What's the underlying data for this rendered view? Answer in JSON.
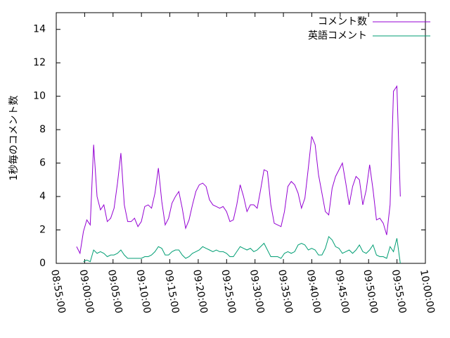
{
  "chart_data": {
    "type": "line",
    "ylabel": "1秒毎のコメント数",
    "x": [
      "08:58:35",
      "08:59:11",
      "08:59:47",
      "09:00:23",
      "09:00:59",
      "09:01:35",
      "09:02:11",
      "09:02:47",
      "09:03:23",
      "09:03:59",
      "09:04:35",
      "09:05:11",
      "09:05:47",
      "09:06:23",
      "09:06:59",
      "09:07:35",
      "09:08:11",
      "09:08:47",
      "09:09:23",
      "09:09:59",
      "09:10:35",
      "09:11:11",
      "09:11:47",
      "09:12:23",
      "09:12:59",
      "09:13:35",
      "09:14:11",
      "09:14:47",
      "09:15:23",
      "09:15:59",
      "09:16:35",
      "09:17:11",
      "09:17:47",
      "09:18:23",
      "09:18:59",
      "09:19:35",
      "09:20:11",
      "09:20:47",
      "09:21:23",
      "09:21:59",
      "09:22:35",
      "09:23:11",
      "09:23:47",
      "09:24:23",
      "09:24:59",
      "09:25:35",
      "09:26:11",
      "09:26:47",
      "09:27:23",
      "09:27:59",
      "09:28:35",
      "09:29:11",
      "09:29:47",
      "09:30:23",
      "09:30:59",
      "09:31:35",
      "09:32:11",
      "09:32:47",
      "09:33:23",
      "09:33:59",
      "09:34:35",
      "09:35:11",
      "09:35:47",
      "09:36:23",
      "09:36:59",
      "09:37:35",
      "09:38:11",
      "09:38:47",
      "09:39:23",
      "09:39:59",
      "09:40:35",
      "09:41:11",
      "09:41:47",
      "09:42:23",
      "09:42:59",
      "09:43:35",
      "09:44:11",
      "09:44:47",
      "09:45:23",
      "09:45:59",
      "09:46:35",
      "09:47:11",
      "09:47:47",
      "09:48:23",
      "09:48:59",
      "09:49:35",
      "09:50:11",
      "09:50:47",
      "09:51:23",
      "09:51:59",
      "09:52:35",
      "09:53:11",
      "09:53:47",
      "09:54:23",
      "09:54:59",
      "09:55:35"
    ],
    "series": [
      {
        "name": "コメント数",
        "color": "#9400d3",
        "values": [
          1.0,
          0.6,
          1.9,
          2.6,
          2.3,
          7.1,
          4.0,
          3.2,
          3.5,
          2.5,
          2.7,
          3.3,
          4.8,
          6.6,
          3.5,
          2.5,
          2.5,
          2.7,
          2.2,
          2.5,
          3.4,
          3.5,
          3.3,
          4.2,
          5.7,
          3.7,
          2.3,
          2.7,
          3.6,
          4.0,
          4.3,
          3.3,
          2.1,
          2.6,
          3.5,
          4.3,
          4.7,
          4.8,
          4.6,
          3.8,
          3.5,
          3.4,
          3.3,
          3.4,
          3.1,
          2.5,
          2.6,
          3.5,
          4.7,
          4.0,
          3.1,
          3.5,
          3.5,
          3.3,
          4.4,
          5.6,
          5.5,
          3.5,
          2.4,
          2.3,
          2.2,
          3.1,
          4.6,
          4.9,
          4.7,
          4.2,
          3.3,
          3.9,
          5.7,
          7.6,
          7.1,
          5.3,
          4.2,
          3.1,
          2.9,
          4.5,
          5.2,
          5.6,
          6.0,
          4.8,
          3.5,
          4.6,
          5.2,
          5.0,
          3.5,
          4.4,
          5.9,
          4.4,
          2.6,
          2.7,
          2.4,
          1.7,
          3.5,
          10.3,
          10.6,
          4.0
        ]
      },
      {
        "name": "英語コメント",
        "color": "#009e73",
        "values": [
          null,
          null,
          0.1,
          0.2,
          0.1,
          0.8,
          0.6,
          0.7,
          0.6,
          0.4,
          0.5,
          0.5,
          0.6,
          0.8,
          0.5,
          0.3,
          0.3,
          0.3,
          0.3,
          0.3,
          0.4,
          0.4,
          0.5,
          0.7,
          1.0,
          0.9,
          0.5,
          0.5,
          0.7,
          0.8,
          0.8,
          0.5,
          0.3,
          0.4,
          0.6,
          0.7,
          0.8,
          1.0,
          0.9,
          0.8,
          0.7,
          0.8,
          0.7,
          0.7,
          0.6,
          0.4,
          0.4,
          0.7,
          1.0,
          0.9,
          0.8,
          0.9,
          0.7,
          0.8,
          1.0,
          1.2,
          0.8,
          0.4,
          0.4,
          0.4,
          0.3,
          0.6,
          0.7,
          0.6,
          0.7,
          1.1,
          1.2,
          1.1,
          0.8,
          0.9,
          0.8,
          0.5,
          0.5,
          0.9,
          1.6,
          1.4,
          1.0,
          0.9,
          0.6,
          0.7,
          0.8,
          0.6,
          0.8,
          1.1,
          0.7,
          0.6,
          0.8,
          1.1,
          0.5,
          0.4,
          0.4,
          0.3,
          1.0,
          0.7,
          1.5,
          0.0
        ]
      }
    ],
    "xlim": [
      "08:55:00",
      "10:00:00"
    ],
    "xticks": [
      "08:55:00",
      "09:00:00",
      "09:05:00",
      "09:10:00",
      "09:15:00",
      "09:20:00",
      "09:25:00",
      "09:30:00",
      "09:35:00",
      "09:40:00",
      "09:45:00",
      "09:50:00",
      "09:55:00",
      "10:00:00"
    ],
    "ylim": [
      0,
      15
    ],
    "yticks": [
      0,
      2,
      4,
      6,
      8,
      10,
      12,
      14
    ],
    "legend": "top-right"
  }
}
